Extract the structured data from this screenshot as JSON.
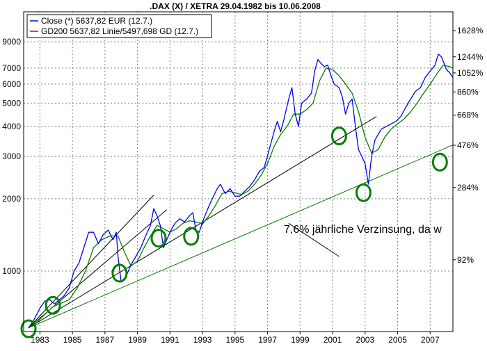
{
  "chart_data": {
    "type": "line",
    "title": ".DAX (X) / XETRA 29.04.1982 bis 10.06.2008",
    "y_scale": "log",
    "ylim": [
      560,
      12000
    ],
    "xlim": [
      1982.0,
      2008.4
    ],
    "grid": true,
    "legend_position": "top-left",
    "x_ticks": [
      1983,
      1985,
      1987,
      1989,
      1991,
      1993,
      1995,
      1997,
      1999,
      2001,
      2003,
      2005,
      2007
    ],
    "x_tick_labels": [
      "1983",
      "1985",
      "1987",
      "1989",
      "1991",
      "1993",
      "1995",
      "1997",
      "1999",
      "2001",
      "2003",
      "2005",
      "2007"
    ],
    "y_ticks": [
      1000,
      2000,
      3000,
      4000,
      5000,
      6000,
      7000,
      9000
    ],
    "y_tick_labels": [
      "1000",
      "2000",
      "3000",
      "4000",
      "5000",
      "6000",
      "7000",
      "9000"
    ],
    "y_right_ticks": [
      1628,
      1244,
      1052,
      860,
      668,
      476,
      284,
      92
    ],
    "y_right_tick_labels": [
      "1628%",
      "1244%",
      "1052%",
      "860%",
      "668%",
      "476%",
      "284%",
      "92%"
    ],
    "series": [
      {
        "name": "Close (*) 5637,82 EUR (12.7.)",
        "color": "#0000ee",
        "x": [
          1982.3,
          1982.6,
          1983.0,
          1983.3,
          1983.6,
          1983.9,
          1984.2,
          1984.5,
          1984.8,
          1985.1,
          1985.4,
          1985.7,
          1986.0,
          1986.3,
          1986.6,
          1986.9,
          1987.2,
          1987.5,
          1987.7,
          1987.8,
          1988.0,
          1988.3,
          1988.6,
          1988.9,
          1989.2,
          1989.5,
          1989.8,
          1990.0,
          1990.2,
          1990.4,
          1990.6,
          1990.8,
          1991.0,
          1991.3,
          1991.6,
          1991.9,
          1992.2,
          1992.4,
          1992.6,
          1992.8,
          1993.0,
          1993.3,
          1993.6,
          1993.9,
          1994.1,
          1994.4,
          1994.7,
          1995.0,
          1995.3,
          1995.6,
          1995.9,
          1996.2,
          1996.5,
          1996.8,
          1997.1,
          1997.4,
          1997.6,
          1997.8,
          1998.0,
          1998.3,
          1998.5,
          1998.7,
          1998.9,
          1999.1,
          1999.4,
          1999.7,
          1999.9,
          2000.1,
          2000.3,
          2000.5,
          2000.7,
          2000.9,
          2001.1,
          2001.4,
          2001.6,
          2001.8,
          2002.0,
          2002.2,
          2002.4,
          2002.6,
          2002.8,
          2003.0,
          2003.2,
          2003.4,
          2003.6,
          2003.8,
          2004.0,
          2004.3,
          2004.6,
          2004.9,
          2005.2,
          2005.5,
          2005.8,
          2006.1,
          2006.4,
          2006.7,
          2007.0,
          2007.3,
          2007.5,
          2007.7,
          2008.0,
          2008.2,
          2008.4
        ],
        "y": [
          580,
          620,
          700,
          750,
          760,
          730,
          760,
          790,
          850,
          1000,
          1080,
          1250,
          1450,
          1450,
          1300,
          1420,
          1480,
          1350,
          1450,
          1150,
          900,
          950,
          1060,
          1150,
          1250,
          1400,
          1550,
          1820,
          1700,
          1550,
          1250,
          1350,
          1450,
          1580,
          1650,
          1600,
          1700,
          1750,
          1480,
          1450,
          1600,
          1800,
          2000,
          2200,
          2300,
          2100,
          2200,
          2050,
          2050,
          2150,
          2250,
          2400,
          2600,
          2700,
          3200,
          3800,
          4200,
          3800,
          4250,
          5200,
          5800,
          4500,
          4000,
          5000,
          5200,
          5500,
          6800,
          7600,
          7300,
          7100,
          7200,
          6500,
          6000,
          5800,
          5300,
          4500,
          5000,
          5200,
          4000,
          3200,
          3000,
          2800,
          2300,
          3000,
          3500,
          3700,
          3900,
          4000,
          4100,
          4200,
          4400,
          4800,
          5200,
          5600,
          5800,
          6400,
          6800,
          7200,
          8000,
          7800,
          6900,
          6700,
          6400
        ]
      },
      {
        "name": "GD200 5637,82 Linie/5497,698 GD (12.7.)",
        "color": "#008000",
        "x": [
          1982.3,
          1982.8,
          1983.3,
          1983.8,
          1984.3,
          1984.8,
          1985.3,
          1985.8,
          1986.3,
          1986.8,
          1987.3,
          1987.8,
          1988.2,
          1988.6,
          1989.0,
          1989.4,
          1989.8,
          1990.2,
          1990.6,
          1991.0,
          1991.4,
          1991.8,
          1992.2,
          1992.6,
          1993.0,
          1993.4,
          1993.8,
          1994.2,
          1994.6,
          1995.0,
          1995.4,
          1995.8,
          1996.2,
          1996.6,
          1997.0,
          1997.4,
          1997.8,
          1998.2,
          1998.6,
          1999.0,
          1999.4,
          1999.8,
          2000.2,
          2000.6,
          2001.0,
          2001.4,
          2001.8,
          2002.2,
          2002.6,
          2003.0,
          2003.4,
          2003.8,
          2004.2,
          2004.6,
          2005.0,
          2005.4,
          2005.8,
          2006.2,
          2006.6,
          2007.0,
          2007.4,
          2007.8,
          2008.2,
          2008.4
        ],
        "y": [
          580,
          610,
          660,
          710,
          735,
          760,
          850,
          1000,
          1250,
          1350,
          1400,
          1400,
          1200,
          1050,
          1100,
          1250,
          1400,
          1550,
          1500,
          1450,
          1500,
          1580,
          1620,
          1600,
          1570,
          1700,
          1880,
          2100,
          2150,
          2120,
          2080,
          2150,
          2300,
          2500,
          2800,
          3300,
          3700,
          4000,
          4500,
          4500,
          4700,
          5000,
          6200,
          7000,
          6900,
          6500,
          6000,
          5500,
          4600,
          3600,
          3100,
          3200,
          3600,
          3900,
          4100,
          4300,
          4600,
          5000,
          5500,
          6000,
          6600,
          7200,
          7100,
          7000
        ]
      }
    ],
    "annotations": [
      {
        "text": "7,6% jährliche Verzinsung, da w"
      }
    ],
    "overlays": {
      "green_trendline": {
        "x": [
          1982.3,
          2008.4
        ],
        "y": [
          580,
          3350
        ],
        "color": "#008000"
      },
      "black_trendlines": [
        {
          "x": [
            1982.3,
            1990.0
          ],
          "y": [
            580,
            2070
          ],
          "color": "#000000"
        },
        {
          "x": [
            1982.3,
            1990.8
          ],
          "y": [
            580,
            1800
          ],
          "color": "#000000"
        },
        {
          "x": [
            1982.3,
            2003.7
          ],
          "y": [
            580,
            4400
          ],
          "color": "#000000"
        }
      ],
      "circle_markers": [
        {
          "x": 1982.3,
          "y": 575
        },
        {
          "x": 1983.8,
          "y": 720
        },
        {
          "x": 1987.9,
          "y": 980
        },
        {
          "x": 1990.3,
          "y": 1370
        },
        {
          "x": 1992.3,
          "y": 1395
        },
        {
          "x": 2001.4,
          "y": 3650
        },
        {
          "x": 2002.9,
          "y": 2120
        },
        {
          "x": 2007.6,
          "y": 2840
        }
      ],
      "pointer_line": {
        "x": [
          1998.3,
          2001.4
        ],
        "y": [
          1580,
          1150
        ]
      }
    }
  }
}
